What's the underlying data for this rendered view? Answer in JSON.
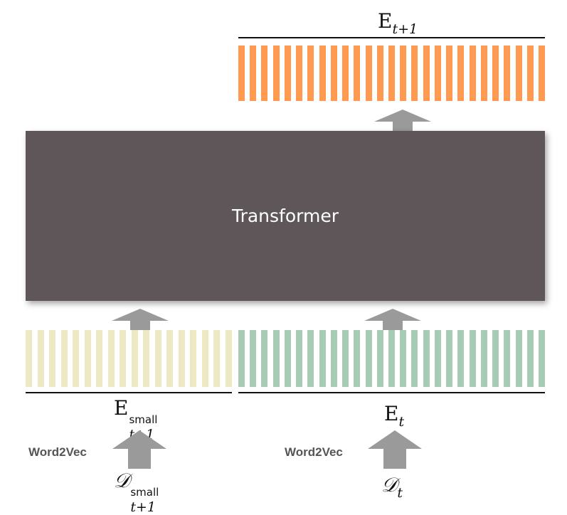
{
  "transformer": {
    "label": "Transformer"
  },
  "output": {
    "symbol": "E",
    "subscript": "t+1",
    "color": "#ff9a50"
  },
  "inputs": {
    "small": {
      "symbol": "E",
      "subscript": "t+1",
      "superscript": "small",
      "color": "#ede9c4",
      "source_symbol": "𝒟",
      "source_subscript": "t+1",
      "source_superscript": "small"
    },
    "current": {
      "symbol": "E",
      "subscript": "t",
      "color": "#a8cbb6",
      "source_symbol": "𝒟",
      "source_subscript": "t"
    }
  },
  "word2vec_label": "Word2Vec",
  "arrow_color": "#9a9a9a"
}
